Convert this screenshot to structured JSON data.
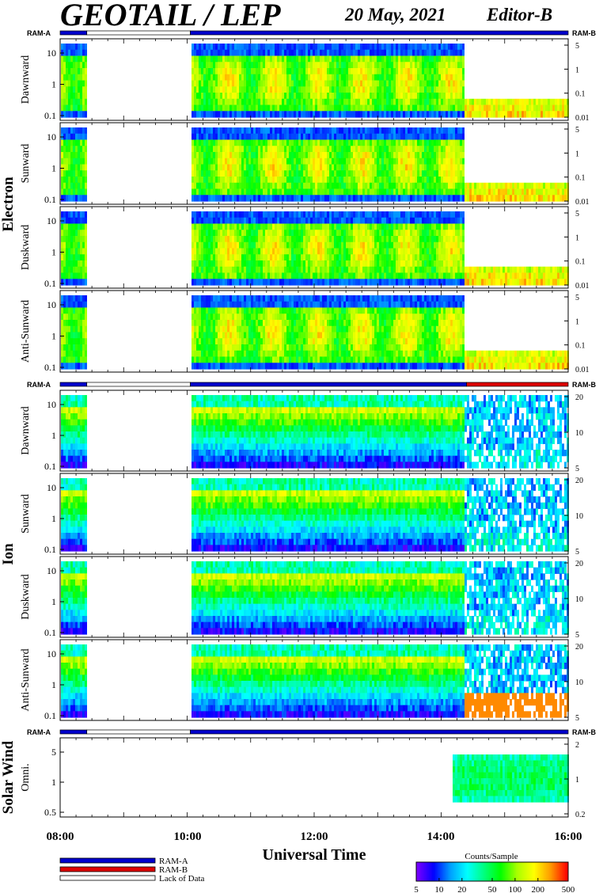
{
  "header": {
    "title": "GEOTAIL / LEP",
    "date": "20 May, 2021",
    "editor": "Editor-B"
  },
  "chart_data": {
    "type": "heatmap",
    "xlabel": "Universal Time",
    "x_ticks": [
      "08:00",
      "10:00",
      "12:00",
      "14:00",
      "16:00"
    ],
    "x_range_hours": [
      8,
      16
    ],
    "data_gaps_hours": [
      [
        8.42,
        10.05
      ]
    ],
    "ram_bar_labels": {
      "left": "RAM-A",
      "right": "RAM-B"
    },
    "ram_state_segments": {
      "electron": [
        {
          "from": 8.0,
          "to": 8.42,
          "state": "RAM-A"
        },
        {
          "from": 8.42,
          "to": 10.05,
          "state": "Lack of Data"
        },
        {
          "from": 10.05,
          "to": 16.0,
          "state": "RAM-A"
        }
      ],
      "ion": [
        {
          "from": 8.0,
          "to": 8.42,
          "state": "RAM-A"
        },
        {
          "from": 8.42,
          "to": 10.05,
          "state": "Lack of Data"
        },
        {
          "from": 10.05,
          "to": 14.4,
          "state": "RAM-A"
        },
        {
          "from": 14.4,
          "to": 16.0,
          "state": "RAM-B"
        }
      ],
      "solar_wind": [
        {
          "from": 8.0,
          "to": 8.42,
          "state": "RAM-A"
        },
        {
          "from": 8.42,
          "to": 10.05,
          "state": "Lack of Data"
        },
        {
          "from": 10.05,
          "to": 16.0,
          "state": "RAM-A"
        }
      ]
    },
    "groups": [
      {
        "name": "Electron",
        "panels": [
          {
            "label": "Dawnward",
            "y_left": [
              "10",
              "1",
              "0.1"
            ],
            "y_right": [
              "5",
              "1",
              "0.1",
              "0.01"
            ]
          },
          {
            "label": "Sunward",
            "y_left": [
              "10",
              "1",
              "0.1"
            ],
            "y_right": [
              "5",
              "1",
              "0.1",
              "0.01"
            ]
          },
          {
            "label": "Duskward",
            "y_left": [
              "10",
              "1",
              "0.1"
            ],
            "y_right": [
              "5",
              "1",
              "0.1",
              "0.01"
            ]
          },
          {
            "label": "Anti-Sunward",
            "y_left": [
              "10",
              "1",
              "0.1"
            ],
            "y_right": [
              "5",
              "1",
              "0.1",
              "0.01"
            ]
          }
        ]
      },
      {
        "name": "Ion",
        "panels": [
          {
            "label": "Dawnward",
            "y_left": [
              "10",
              "1",
              "0.1"
            ],
            "y_right": [
              "20",
              "10",
              "5"
            ]
          },
          {
            "label": "Sunward",
            "y_left": [
              "10",
              "1",
              "0.1"
            ],
            "y_right": [
              "20",
              "10",
              "5"
            ]
          },
          {
            "label": "Duskward",
            "y_left": [
              "10",
              "1",
              "0.1"
            ],
            "y_right": [
              "20",
              "10",
              "5"
            ]
          },
          {
            "label": "Anti-Sunward",
            "y_left": [
              "10",
              "1",
              "0.1"
            ],
            "y_right": [
              "20",
              "10",
              "5"
            ]
          }
        ]
      },
      {
        "name": "Solar Wind",
        "panels": [
          {
            "label": "Omni.",
            "y_left": [
              "5",
              "1",
              "0.5"
            ],
            "y_right": [
              "2",
              "1",
              "0.2"
            ]
          }
        ]
      }
    ],
    "legend": [
      {
        "label": "RAM-A",
        "color": "#0000cc"
      },
      {
        "label": "RAM-B",
        "color": "#dd0000"
      },
      {
        "label": "Lack of Data",
        "color": "#ffffff"
      }
    ],
    "colorbar": {
      "title": "Counts/Sample",
      "ticks": [
        "5",
        "10",
        "20",
        "50",
        "100",
        "200",
        "500"
      ],
      "scale": "log",
      "range": [
        5,
        500
      ],
      "colors": [
        "#7a00ff",
        "#0000ff",
        "#00a0ff",
        "#00ffff",
        "#00ff80",
        "#00ff00",
        "#aaff00",
        "#ffff00",
        "#ff9900",
        "#ff0000"
      ]
    }
  }
}
